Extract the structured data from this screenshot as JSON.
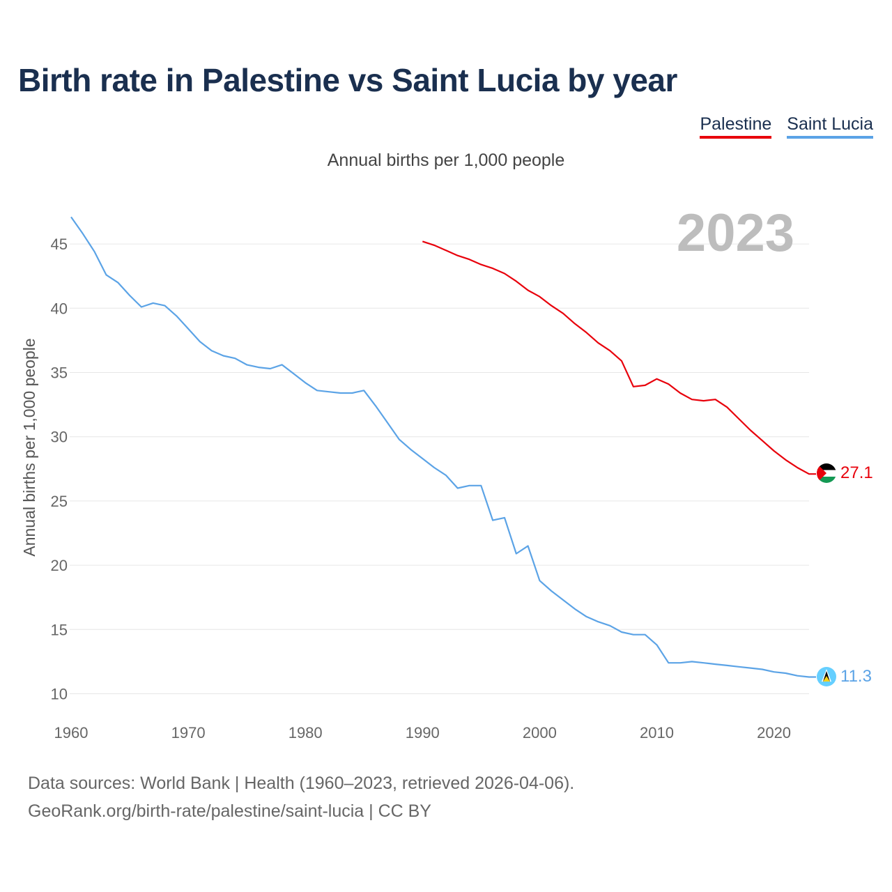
{
  "title": "Birth rate in Palestine vs Saint Lucia by year",
  "legend": {
    "palestine": "Palestine",
    "saint_lucia": "Saint Lucia"
  },
  "subtitle": "Annual births per 1,000 people",
  "year_label": "2023",
  "colors": {
    "palestine": "#e8000b",
    "saint_lucia": "#5ba3e6",
    "title": "#1a2f4f"
  },
  "source_line1": "Data sources: World Bank | Health (1960–2023, retrieved 2026-04-06).",
  "source_line2": "GeoRank.org/birth-rate/palestine/saint-lucia | CC BY",
  "chart_data": {
    "type": "line",
    "title": "Birth rate in Palestine vs Saint Lucia by year",
    "ylabel": "Annual births per 1,000 people",
    "xlabel": "",
    "xlim": [
      1960,
      2023
    ],
    "ylim": [
      10,
      47.5
    ],
    "xticks": [
      1960,
      1970,
      1980,
      1990,
      2000,
      2010,
      2020
    ],
    "yticks": [
      10,
      15,
      20,
      25,
      30,
      35,
      40,
      45
    ],
    "grid": true,
    "series": [
      {
        "name": "Palestine",
        "color": "#e8000b",
        "end_label": "27.1",
        "x": [
          1990,
          1991,
          1992,
          1993,
          1994,
          1995,
          1996,
          1997,
          1998,
          1999,
          2000,
          2001,
          2002,
          2003,
          2004,
          2005,
          2006,
          2007,
          2008,
          2009,
          2010,
          2011,
          2012,
          2013,
          2014,
          2015,
          2016,
          2017,
          2018,
          2019,
          2020,
          2021,
          2022,
          2023
        ],
        "values": [
          45.2,
          44.9,
          44.5,
          44.1,
          43.8,
          43.4,
          43.1,
          42.7,
          42.1,
          41.4,
          40.9,
          40.2,
          39.6,
          38.8,
          38.1,
          37.3,
          36.7,
          35.9,
          33.9,
          34.0,
          34.5,
          34.1,
          33.4,
          32.9,
          32.8,
          32.9,
          32.3,
          31.4,
          30.5,
          29.7,
          28.9,
          28.2,
          27.6,
          27.1
        ]
      },
      {
        "name": "Saint Lucia",
        "color": "#5ba3e6",
        "end_label": "11.3",
        "x": [
          1960,
          1961,
          1962,
          1963,
          1964,
          1965,
          1966,
          1967,
          1968,
          1969,
          1970,
          1971,
          1972,
          1973,
          1974,
          1975,
          1976,
          1977,
          1978,
          1979,
          1980,
          1981,
          1982,
          1983,
          1984,
          1985,
          1986,
          1987,
          1988,
          1989,
          1990,
          1991,
          1992,
          1993,
          1994,
          1995,
          1996,
          1997,
          1998,
          1999,
          2000,
          2001,
          2002,
          2003,
          2004,
          2005,
          2006,
          2007,
          2008,
          2009,
          2010,
          2011,
          2012,
          2013,
          2014,
          2015,
          2016,
          2017,
          2018,
          2019,
          2020,
          2021,
          2022,
          2023
        ],
        "values": [
          47.1,
          45.8,
          44.4,
          42.6,
          42.0,
          41.0,
          40.1,
          40.4,
          40.2,
          39.4,
          38.4,
          37.4,
          36.7,
          36.3,
          36.1,
          35.6,
          35.4,
          35.3,
          35.6,
          34.9,
          34.2,
          33.6,
          33.5,
          33.4,
          33.4,
          33.6,
          32.4,
          31.1,
          29.8,
          29.0,
          28.3,
          27.6,
          27.0,
          26.0,
          26.2,
          26.2,
          23.5,
          23.7,
          20.9,
          21.5,
          18.8,
          18.0,
          17.3,
          16.6,
          16.0,
          15.6,
          15.3,
          14.8,
          14.6,
          14.6,
          13.8,
          12.4,
          12.4,
          12.5,
          12.4,
          12.3,
          12.2,
          12.1,
          12.0,
          11.9,
          11.7,
          11.6,
          11.4,
          11.3
        ]
      }
    ]
  }
}
